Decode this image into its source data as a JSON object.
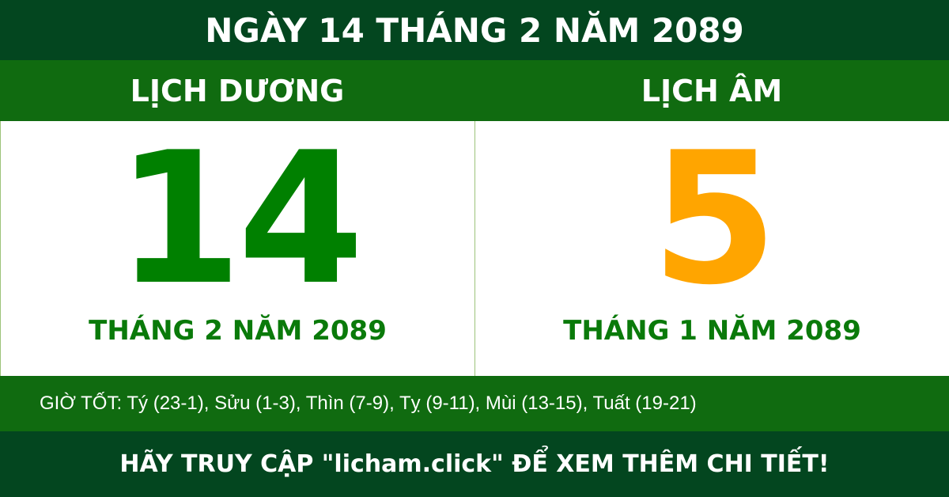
{
  "header": {
    "title": "NGÀY 14 THÁNG 2 NĂM 2089"
  },
  "solar": {
    "label": "LỊCH DƯƠNG",
    "day": "14",
    "month_year": "THÁNG 2 NĂM 2089"
  },
  "lunar": {
    "label": "LỊCH ÂM",
    "day": "5",
    "month_year": "THÁNG 1 NĂM 2089"
  },
  "good_hours": "GIỜ TỐT: Tý (23-1), Sửu (1-3), Thìn (7-9), Tỵ (9-11), Mùi (13-15), Tuất (19-21)",
  "footer": {
    "cta": "HÃY TRUY CẬP \"licham.click\" ĐỂ XEM THÊM CHI TIẾT!"
  },
  "colors": {
    "dark_green": "#03461f",
    "green": "#106b10",
    "solar_day": "#008000",
    "lunar_day": "#ffa500"
  }
}
